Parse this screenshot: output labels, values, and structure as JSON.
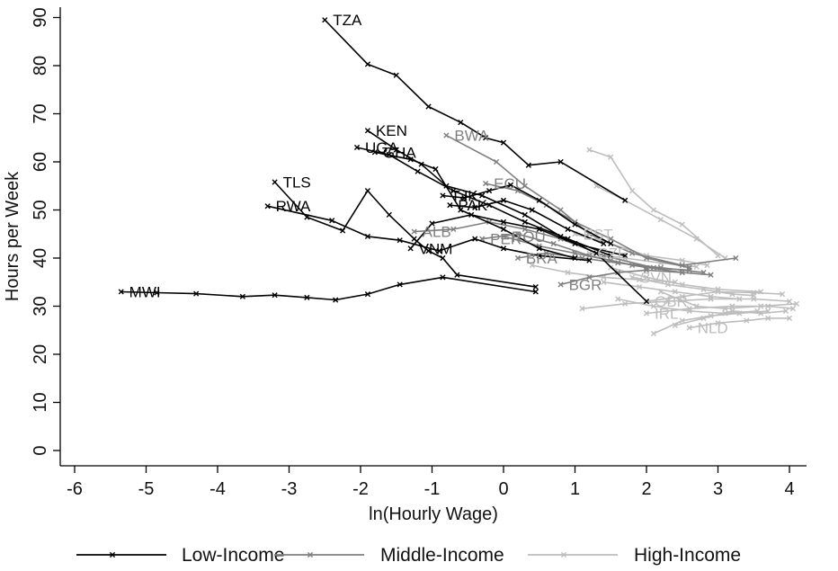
{
  "chart_data": {
    "type": "line",
    "xlabel": "ln(Hourly Wage)",
    "ylabel": "Hours per Week",
    "xlim": [
      -6.2,
      4.3
    ],
    "ylim": [
      -2,
      92
    ],
    "xticks": [
      "-6",
      "-5",
      "-4",
      "-3",
      "-2",
      "-1",
      "0",
      "1",
      "2",
      "3",
      "4"
    ],
    "yticks": [
      "0",
      "10",
      "20",
      "30",
      "40",
      "50",
      "60",
      "70",
      "80",
      "90"
    ],
    "grid": false,
    "legend": {
      "position": "bottom",
      "entries": [
        {
          "label": "Low-Income",
          "color": "#000000"
        },
        {
          "label": "Middle-Income",
          "color": "#7f7f7f"
        },
        {
          "label": "High-Income",
          "color": "#bdbdbd"
        }
      ]
    },
    "series": [
      {
        "group": "low",
        "label": "TZA",
        "points": [
          [
            -2.5,
            89.5
          ],
          [
            -1.9,
            80.3
          ],
          [
            -1.5,
            78
          ],
          [
            -1.05,
            71.5
          ],
          [
            -0.6,
            68.2
          ],
          [
            -0.25,
            65
          ],
          [
            0.0,
            64
          ],
          [
            0.35,
            59.3
          ],
          [
            0.8,
            60
          ],
          [
            1.7,
            52
          ]
        ]
      },
      {
        "group": "low",
        "label": "KEN",
        "points": [
          [
            -1.9,
            66.5
          ],
          [
            -1.5,
            62.5
          ],
          [
            -1.15,
            59.5
          ],
          [
            -0.8,
            55
          ],
          [
            -0.3,
            53
          ],
          [
            0.3,
            49
          ],
          [
            0.8,
            44.5
          ],
          [
            1.3,
            41
          ],
          [
            2.0,
            31
          ]
        ]
      },
      {
        "group": "low",
        "label": "UGA",
        "points": [
          [
            -2.05,
            63
          ],
          [
            -1.6,
            61.5
          ],
          [
            -1.2,
            58
          ],
          [
            -0.7,
            54
          ],
          [
            -0.2,
            51
          ],
          [
            0.3,
            47.5
          ],
          [
            0.9,
            44
          ],
          [
            1.5,
            40.5
          ]
        ]
      },
      {
        "group": "low",
        "label": "GHA",
        "points": [
          [
            -1.8,
            62
          ],
          [
            -1.3,
            60.5
          ],
          [
            -0.95,
            58.5
          ],
          [
            -0.6,
            50
          ],
          [
            0.0,
            46
          ],
          [
            0.5,
            42
          ],
          [
            1.0,
            40
          ]
        ]
      },
      {
        "group": "low",
        "label": "TLS",
        "points": [
          [
            -3.2,
            55.8
          ],
          [
            -2.75,
            48.5
          ],
          [
            -2.25,
            45.7
          ],
          [
            -1.9,
            54
          ],
          [
            -1.6,
            49
          ],
          [
            -1.25,
            44
          ],
          [
            -1.05,
            41.5
          ],
          [
            -0.85,
            40
          ],
          [
            -0.65,
            36.5
          ],
          [
            0.45,
            34
          ]
        ]
      },
      {
        "group": "low",
        "label": "RWA",
        "points": [
          [
            -3.3,
            50.8
          ],
          [
            -2.4,
            47.8
          ],
          [
            -1.9,
            44.5
          ],
          [
            -1.45,
            43.7
          ],
          [
            -0.9,
            41.5
          ],
          [
            -0.4,
            44
          ],
          [
            0.0,
            42
          ],
          [
            0.5,
            40.5
          ],
          [
            1.2,
            39.5
          ]
        ]
      },
      {
        "group": "low",
        "label": "TJK",
        "points": [
          [
            -0.85,
            53
          ],
          [
            -0.55,
            52.5
          ],
          [
            -0.2,
            54
          ],
          [
            0.1,
            55.2
          ],
          [
            0.5,
            52
          ],
          [
            1.0,
            47
          ],
          [
            1.5,
            43
          ]
        ]
      },
      {
        "group": "low",
        "label": "PAK",
        "points": [
          [
            -0.75,
            51
          ],
          [
            -0.4,
            50.5
          ],
          [
            0.0,
            52
          ],
          [
            0.4,
            50
          ],
          [
            0.9,
            46
          ],
          [
            1.4,
            43
          ]
        ]
      },
      {
        "group": "low",
        "label": "VNM",
        "points": [
          [
            -1.3,
            42
          ],
          [
            -1.0,
            47.2
          ],
          [
            -0.45,
            49
          ],
          [
            0.0,
            47.5
          ],
          [
            0.5,
            46
          ],
          [
            1.0,
            43
          ],
          [
            1.7,
            40.5
          ]
        ]
      },
      {
        "group": "low",
        "label": "MWI",
        "points": [
          [
            -5.35,
            33
          ],
          [
            -4.85,
            32.8
          ],
          [
            -4.3,
            32.6
          ],
          [
            -3.65,
            32
          ],
          [
            -3.2,
            32.3
          ],
          [
            -2.75,
            31.8
          ],
          [
            -2.35,
            31.3
          ],
          [
            -1.9,
            32.5
          ],
          [
            -1.45,
            34.5
          ],
          [
            -0.85,
            36
          ],
          [
            0.45,
            33
          ]
        ]
      },
      {
        "group": "middle",
        "label": "BWA",
        "points": [
          [
            -0.8,
            65.5
          ],
          [
            -0.1,
            60
          ],
          [
            0.3,
            55
          ],
          [
            0.8,
            50
          ],
          [
            1.2,
            45
          ],
          [
            1.8,
            41
          ],
          [
            2.5,
            38.5
          ],
          [
            3.25,
            40
          ]
        ]
      },
      {
        "group": "middle",
        "label": "ECU",
        "points": [
          [
            -0.25,
            55.5
          ],
          [
            0.2,
            54
          ],
          [
            0.6,
            51
          ],
          [
            1.0,
            47.5
          ],
          [
            1.5,
            44
          ],
          [
            2.0,
            40
          ],
          [
            2.6,
            38
          ]
        ]
      },
      {
        "group": "middle",
        "label": "ALB",
        "points": [
          [
            -1.25,
            45.5
          ],
          [
            -0.7,
            46
          ],
          [
            -0.2,
            47.5
          ],
          [
            0.3,
            46
          ],
          [
            0.8,
            44
          ],
          [
            1.4,
            40.5
          ],
          [
            2.1,
            38
          ]
        ]
      },
      {
        "group": "middle",
        "label": "PER",
        "points": [
          [
            -0.3,
            44
          ],
          [
            0.2,
            45
          ],
          [
            0.7,
            43
          ],
          [
            1.2,
            40.5
          ],
          [
            1.8,
            38.5
          ],
          [
            2.5,
            37
          ]
        ]
      },
      {
        "group": "middle",
        "label": "ROU",
        "points": [
          [
            0.0,
            44.5
          ],
          [
            0.5,
            42.5
          ],
          [
            1.0,
            41
          ],
          [
            1.5,
            39.5
          ],
          [
            2.0,
            38
          ],
          [
            2.6,
            37.5
          ]
        ]
      },
      {
        "group": "middle",
        "label": "BGR",
        "points": [
          [
            0.8,
            34.5
          ],
          [
            1.2,
            36
          ],
          [
            1.6,
            37
          ],
          [
            2.0,
            37.5
          ],
          [
            2.5,
            37
          ],
          [
            2.9,
            36.5
          ]
        ]
      },
      {
        "group": "middle",
        "label": "BRA",
        "points": [
          [
            0.2,
            40
          ],
          [
            0.6,
            41
          ],
          [
            1.1,
            40
          ],
          [
            1.6,
            39
          ],
          [
            2.2,
            38
          ],
          [
            2.8,
            37
          ]
        ]
      },
      {
        "group": "high",
        "label": "EST",
        "points": [
          [
            1.0,
            45
          ],
          [
            1.5,
            43
          ],
          [
            2.0,
            40.5
          ],
          [
            2.5,
            39.5
          ],
          [
            2.85,
            38.5
          ]
        ]
      },
      {
        "group": "high",
        "label": "CZE",
        "points": [
          [
            1.2,
            41
          ],
          [
            1.7,
            40
          ],
          [
            2.2,
            39
          ],
          [
            2.7,
            38.2
          ]
        ]
      },
      {
        "group": "high",
        "label": "SVN",
        "points": [
          [
            1.8,
            36
          ],
          [
            2.3,
            34.5
          ],
          [
            2.8,
            33.5
          ],
          [
            3.2,
            32.5
          ],
          [
            3.5,
            32.2
          ]
        ]
      },
      {
        "group": "high",
        "label": "GBR",
        "points": [
          [
            2.0,
            31
          ],
          [
            2.5,
            32
          ],
          [
            3.0,
            33
          ],
          [
            3.5,
            32.8
          ],
          [
            3.9,
            32.5
          ]
        ]
      },
      {
        "group": "high",
        "label": "IRL",
        "points": [
          [
            2.0,
            28.5
          ],
          [
            2.6,
            29.5
          ],
          [
            3.2,
            30
          ],
          [
            3.7,
            30
          ],
          [
            4.05,
            29.5
          ]
        ]
      },
      {
        "group": "high",
        "label": "NLD",
        "points": [
          [
            2.6,
            25.5
          ],
          [
            3.0,
            26.5
          ],
          [
            3.4,
            27
          ],
          [
            3.7,
            27.5
          ],
          [
            4.0,
            27.5
          ]
        ]
      },
      {
        "group": "high",
        "label": "",
        "points": [
          [
            1.2,
            62.5
          ],
          [
            1.5,
            61
          ],
          [
            1.8,
            54
          ],
          [
            2.1,
            50
          ],
          [
            2.5,
            47
          ],
          [
            3.0,
            40.5
          ]
        ]
      },
      {
        "group": "high",
        "label": "",
        "points": [
          [
            1.3,
            55
          ],
          [
            1.7,
            52
          ],
          [
            2.2,
            48
          ],
          [
            2.7,
            44
          ],
          [
            3.1,
            40
          ]
        ]
      },
      {
        "group": "high",
        "label": "",
        "points": [
          [
            1.1,
            29.5
          ],
          [
            1.7,
            30.5
          ],
          [
            2.3,
            31
          ],
          [
            2.9,
            31.5
          ],
          [
            3.5,
            31.5
          ],
          [
            4.0,
            31
          ]
        ]
      },
      {
        "group": "high",
        "label": "",
        "points": [
          [
            2.1,
            24.3
          ],
          [
            2.5,
            27
          ],
          [
            2.9,
            28
          ],
          [
            3.3,
            28.5
          ],
          [
            3.7,
            29
          ]
        ]
      },
      {
        "group": "high",
        "label": "",
        "points": [
          [
            1.5,
            38
          ],
          [
            2.0,
            36
          ],
          [
            2.5,
            34.5
          ],
          [
            3.0,
            33.5
          ],
          [
            3.6,
            33
          ]
        ]
      },
      {
        "group": "high",
        "label": "",
        "points": [
          [
            2.2,
            33
          ],
          [
            2.7,
            30
          ],
          [
            3.1,
            29.5
          ],
          [
            3.6,
            30
          ],
          [
            4.1,
            30.5
          ]
        ]
      },
      {
        "group": "high",
        "label": "",
        "points": [
          [
            1.4,
            35
          ],
          [
            1.9,
            34
          ],
          [
            2.4,
            33
          ],
          [
            2.9,
            32
          ],
          [
            3.3,
            31.5
          ]
        ]
      },
      {
        "group": "high",
        "label": "",
        "points": [
          [
            2.4,
            26
          ],
          [
            2.8,
            27.5
          ],
          [
            3.2,
            29
          ],
          [
            3.6,
            28.5
          ],
          [
            3.95,
            29
          ]
        ]
      },
      {
        "group": "high",
        "label": "",
        "points": [
          [
            1.6,
            31.5
          ],
          [
            2.1,
            30
          ],
          [
            2.6,
            29
          ],
          [
            3.1,
            28.5
          ],
          [
            3.55,
            29
          ]
        ]
      },
      {
        "group": "high",
        "label": "",
        "points": [
          [
            0.4,
            38.5
          ],
          [
            0.9,
            37
          ],
          [
            1.4,
            36
          ],
          [
            1.9,
            35.5
          ],
          [
            2.4,
            35
          ]
        ]
      }
    ]
  }
}
